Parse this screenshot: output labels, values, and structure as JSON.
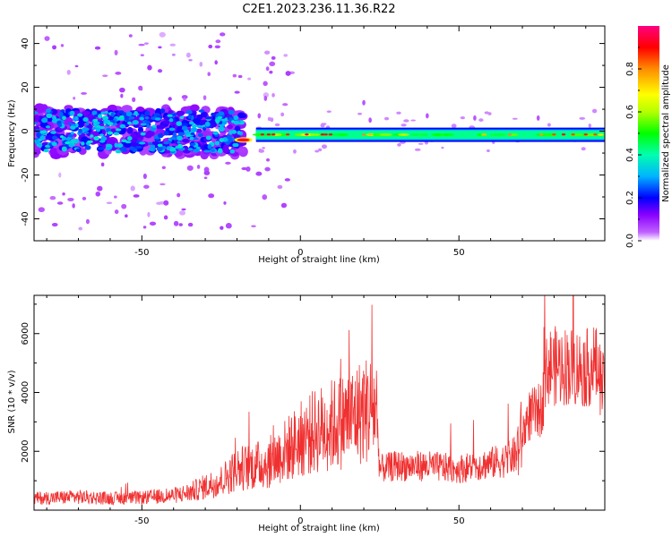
{
  "figure": {
    "title": "C2E1.2023.236.11.36.R22"
  },
  "chart_data": [
    {
      "type": "heatmap",
      "xlabel": "Height of straight line (km)",
      "ylabel": "Frequency (Hz)",
      "xlim": [
        -84,
        96
      ],
      "ylim": [
        -50,
        48
      ],
      "xticks": [
        "-50",
        "0",
        "50"
      ],
      "yticks": [
        "-40",
        "-20",
        "0",
        "20",
        "40"
      ],
      "colorbar": {
        "label": "Normalized spectral amplitude",
        "range": [
          0,
          1
        ],
        "ticks": [
          "0.0",
          "0.2",
          "0.4",
          "0.6",
          "0.8"
        ],
        "colors": [
          "#ffffff",
          "#c060ff",
          "#8a00ff",
          "#0000ff",
          "#00b4ff",
          "#00ffb0",
          "#00ff00",
          "#b4ff00",
          "#ffff00",
          "#ff8c00",
          "#ff0000",
          "#ff0080"
        ]
      },
      "bands": [
        {
          "x": [
            -84,
            -20
          ],
          "freq": [
            -12,
            10
          ],
          "level": "scattered"
        },
        {
          "x": [
            -20,
            -14
          ],
          "freq": [
            -5,
            -3
          ],
          "level": 0.95
        },
        {
          "x": [
            -14,
            96
          ],
          "freq": [
            -3,
            0
          ],
          "level": 0.6
        }
      ]
    },
    {
      "type": "line",
      "xlabel": "Height of straight line (km)",
      "ylabel": "SNR (10 * v/v)",
      "xlim": [
        -84,
        96
      ],
      "ylim": [
        0,
        7300
      ],
      "xticks": [
        "-50",
        "0",
        "50"
      ],
      "yticks": [
        "2000",
        "4000",
        "6000"
      ],
      "color": "#f03030",
      "series": [
        {
          "x": [
            -84,
            -70,
            -60,
            -50,
            -40,
            -35,
            -30,
            -25,
            -20,
            -15,
            -10,
            -5,
            0,
            5,
            10,
            15,
            20,
            24,
            25,
            30,
            40,
            50,
            60,
            65,
            68,
            72,
            76,
            78,
            85,
            90,
            93,
            96
          ],
          "y": [
            400,
            450,
            400,
            420,
            500,
            600,
            800,
            1000,
            1400,
            1500,
            1600,
            2000,
            2400,
            2700,
            2900,
            3100,
            3400,
            3500,
            1400,
            1500,
            1500,
            1400,
            1600,
            1700,
            1900,
            3200,
            3400,
            4900,
            4900,
            4800,
            5000,
            4000
          ]
        }
      ]
    }
  ]
}
